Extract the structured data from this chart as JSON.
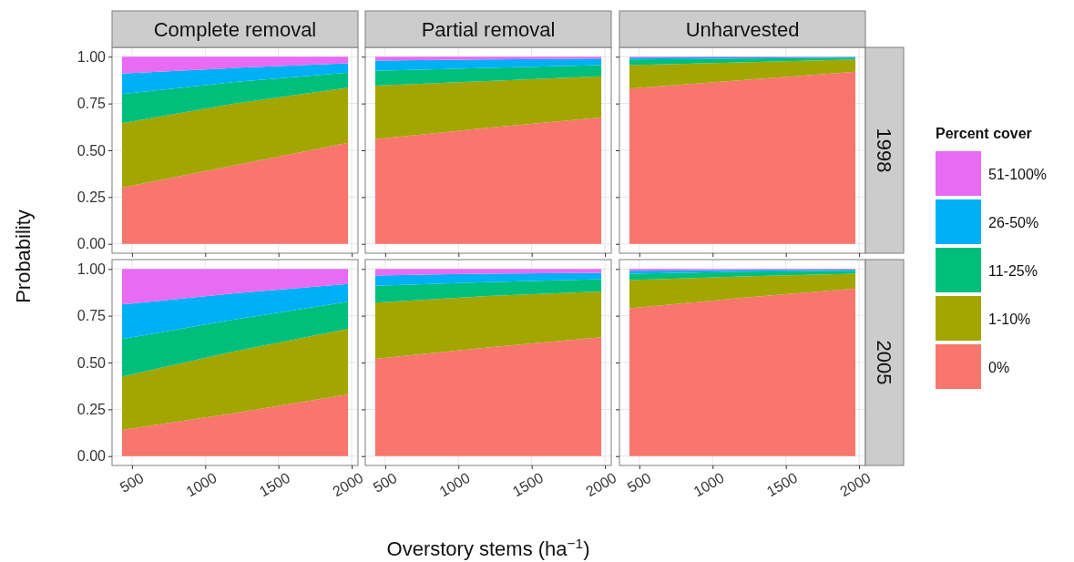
{
  "chart_data": [
    {
      "type": "area",
      "stacked": true,
      "title": "Complete removal",
      "ylabel": "Probability",
      "x": [
        432,
        1200,
        1975
      ],
      "xlim": [
        364,
        2043
      ],
      "ylim": [
        -0.05,
        1.05
      ],
      "xticks": [
        {
          "value": 500,
          "label": null
        },
        {
          "value": 1000,
          "label": null
        },
        {
          "value": 1500,
          "label": null
        },
        {
          "value": 2000,
          "label": null
        }
      ],
      "yticks": [
        {
          "value": 0,
          "label": "0.00"
        },
        {
          "value": 0.25,
          "label": "0.25"
        },
        {
          "value": 0.5,
          "label": "0.50"
        },
        {
          "value": 0.75,
          "label": "0.75"
        },
        {
          "value": 1,
          "label": "1.00"
        }
      ],
      "grid": true,
      "tick_labels": "y",
      "series": [
        {
          "color": "#f8766d",
          "values": [
            0.3,
            0.42,
            0.54
          ]
        },
        {
          "color": "#a3a500",
          "values": [
            0.345,
            0.33,
            0.295
          ]
        },
        {
          "color": "#00bf7d",
          "values": [
            0.155,
            0.115,
            0.08
          ]
        },
        {
          "color": "#00b0f6",
          "values": [
            0.11,
            0.075,
            0.05
          ]
        },
        {
          "color": "#e76bf3",
          "values": [
            0.09,
            0.06,
            0.035
          ]
        }
      ]
    },
    {
      "type": "area",
      "stacked": true,
      "title": "Partial removal",
      "x": [
        432,
        1200,
        1975
      ],
      "xlim": [
        364,
        2043
      ],
      "ylim": [
        -0.05,
        1.05
      ],
      "xticks": [
        {
          "value": 500,
          "label": null
        },
        {
          "value": 1000,
          "label": null
        },
        {
          "value": 1500,
          "label": null
        },
        {
          "value": 2000,
          "label": null
        }
      ],
      "yticks": [
        {
          "value": 0,
          "label": null
        },
        {
          "value": 0.25,
          "label": null
        },
        {
          "value": 0.5,
          "label": null
        },
        {
          "value": 0.75,
          "label": null
        },
        {
          "value": 1,
          "label": null
        }
      ],
      "grid": true,
      "tick_labels": false,
      "series": [
        {
          "color": "#f8766d",
          "values": [
            0.56,
            0.62,
            0.675
          ]
        },
        {
          "color": "#a3a500",
          "values": [
            0.285,
            0.25,
            0.22
          ]
        },
        {
          "color": "#00bf7d",
          "values": [
            0.08,
            0.07,
            0.06
          ]
        },
        {
          "color": "#00b0f6",
          "values": [
            0.055,
            0.045,
            0.035
          ]
        },
        {
          "color": "#e76bf3",
          "values": [
            0.02,
            0.015,
            0.01
          ]
        }
      ]
    },
    {
      "type": "area",
      "stacked": true,
      "title": "Unharvested",
      "y2label": "1998",
      "legend": "right",
      "legend_title": "Percent cover",
      "x": [
        432,
        1200,
        1975
      ],
      "xlim": [
        364,
        2043
      ],
      "ylim": [
        -0.05,
        1.05
      ],
      "xticks": [
        {
          "value": 500,
          "label": null
        },
        {
          "value": 1000,
          "label": null
        },
        {
          "value": 1500,
          "label": null
        },
        {
          "value": 2000,
          "label": null
        }
      ],
      "yticks": [
        {
          "value": 0,
          "label": null
        },
        {
          "value": 0.25,
          "label": null
        },
        {
          "value": 0.5,
          "label": null
        },
        {
          "value": 0.75,
          "label": null
        },
        {
          "value": 1,
          "label": null
        }
      ],
      "grid": true,
      "tick_labels": false,
      "series": [
        {
          "name": "0%",
          "color": "#f8766d",
          "values": [
            0.83,
            0.875,
            0.92
          ]
        },
        {
          "name": "1-10%",
          "color": "#a3a500",
          "values": [
            0.125,
            0.095,
            0.065
          ]
        },
        {
          "name": "11-25%",
          "color": "#00bf7d",
          "values": [
            0.03,
            0.02,
            0.01
          ]
        },
        {
          "name": "26-50%",
          "color": "#00b0f6",
          "values": [
            0.01,
            0.007,
            0.004
          ]
        },
        {
          "name": "51-100%",
          "color": "#e76bf3",
          "values": [
            0.005,
            0.003,
            0.001
          ]
        }
      ]
    },
    {
      "type": "area",
      "stacked": true,
      "x": [
        432,
        1200,
        1975
      ],
      "xlim": [
        364,
        2043
      ],
      "ylim": [
        -0.05,
        1.05
      ],
      "xticks": [
        500,
        1000,
        1500,
        2000
      ],
      "yticks": [
        {
          "value": 0,
          "label": "0.00"
        },
        {
          "value": 0.25,
          "label": "0.25"
        },
        {
          "value": 0.5,
          "label": "0.50"
        },
        {
          "value": 0.75,
          "label": "0.75"
        },
        {
          "value": 1,
          "label": "1.00"
        }
      ],
      "grid": true,
      "series": [
        {
          "color": "#f8766d",
          "values": [
            0.14,
            0.23,
            0.33
          ]
        },
        {
          "color": "#a3a500",
          "values": [
            0.285,
            0.33,
            0.35
          ]
        },
        {
          "color": "#00bf7d",
          "values": [
            0.2,
            0.17,
            0.145
          ]
        },
        {
          "color": "#00b0f6",
          "values": [
            0.185,
            0.14,
            0.095
          ]
        },
        {
          "color": "#e76bf3",
          "values": [
            0.19,
            0.13,
            0.08
          ]
        }
      ]
    },
    {
      "type": "area",
      "stacked": true,
      "xlabel": "Overstory stems (ha$^{−1}$)",
      "x": [
        432,
        1200,
        1975
      ],
      "xlim": [
        364,
        2043
      ],
      "ylim": [
        -0.05,
        1.05
      ],
      "xticks": [
        500,
        1000,
        1500,
        2000
      ],
      "yticks": [
        {
          "value": 0,
          "label": null
        },
        {
          "value": 0.25,
          "label": null
        },
        {
          "value": 0.5,
          "label": null
        },
        {
          "value": 0.75,
          "label": null
        },
        {
          "value": 1,
          "label": null
        }
      ],
      "grid": true,
      "tick_labels": "x",
      "series": [
        {
          "color": "#f8766d",
          "values": [
            0.52,
            0.58,
            0.635
          ]
        },
        {
          "color": "#a3a500",
          "values": [
            0.3,
            0.275,
            0.245
          ]
        },
        {
          "color": "#00bf7d",
          "values": [
            0.09,
            0.075,
            0.065
          ]
        },
        {
          "color": "#00b0f6",
          "values": [
            0.055,
            0.045,
            0.035
          ]
        },
        {
          "color": "#e76bf3",
          "values": [
            0.035,
            0.025,
            0.02
          ]
        }
      ]
    },
    {
      "type": "area",
      "stacked": true,
      "y2label": "2005",
      "x": [
        432,
        1200,
        1975
      ],
      "xlim": [
        364,
        2043
      ],
      "ylim": [
        -0.05,
        1.05
      ],
      "xticks": [
        500,
        1000,
        1500,
        2000
      ],
      "yticks": [
        {
          "value": 0,
          "label": null
        },
        {
          "value": 0.25,
          "label": null
        },
        {
          "value": 0.5,
          "label": null
        },
        {
          "value": 0.75,
          "label": null
        },
        {
          "value": 1,
          "label": null
        }
      ],
      "grid": true,
      "tick_labels": "x",
      "series": [
        {
          "color": "#f8766d",
          "values": [
            0.79,
            0.845,
            0.895
          ]
        },
        {
          "color": "#a3a500",
          "values": [
            0.15,
            0.115,
            0.08
          ]
        },
        {
          "color": "#00bf7d",
          "values": [
            0.035,
            0.025,
            0.015
          ]
        },
        {
          "color": "#00b0f6",
          "values": [
            0.015,
            0.01,
            0.007
          ]
        },
        {
          "color": "#e76bf3",
          "values": [
            0.01,
            0.005,
            0.003
          ]
        }
      ]
    }
  ]
}
